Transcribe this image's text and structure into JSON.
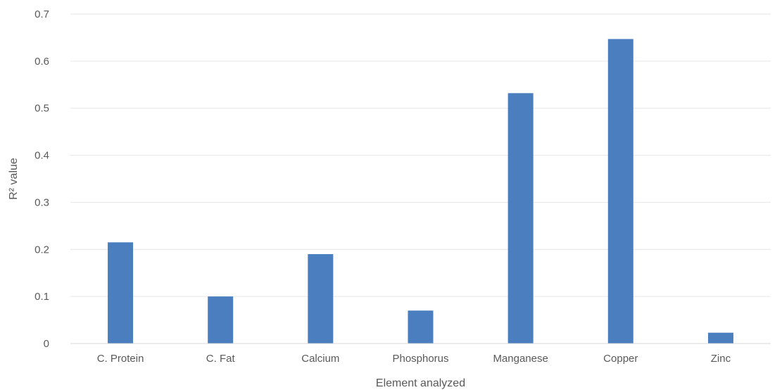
{
  "chart_data": {
    "type": "bar",
    "title": "",
    "xlabel": "Element analyzed",
    "ylabel": "R² value",
    "categories": [
      "C. Protein",
      "C. Fat",
      "Calcium",
      "Phosphorus",
      "Manganese",
      "Copper",
      "Zinc"
    ],
    "values": [
      0.215,
      0.1,
      0.19,
      0.07,
      0.532,
      0.647,
      0.023
    ],
    "ylim": [
      0,
      0.7
    ],
    "yticks": [
      "0",
      "0.1",
      "0.2",
      "0.3",
      "0.4",
      "0.5",
      "0.6",
      "0.7"
    ],
    "grid": true,
    "legend": "none",
    "bar_color": "#4a7ebf",
    "grid_color": "#e6e6e6"
  }
}
